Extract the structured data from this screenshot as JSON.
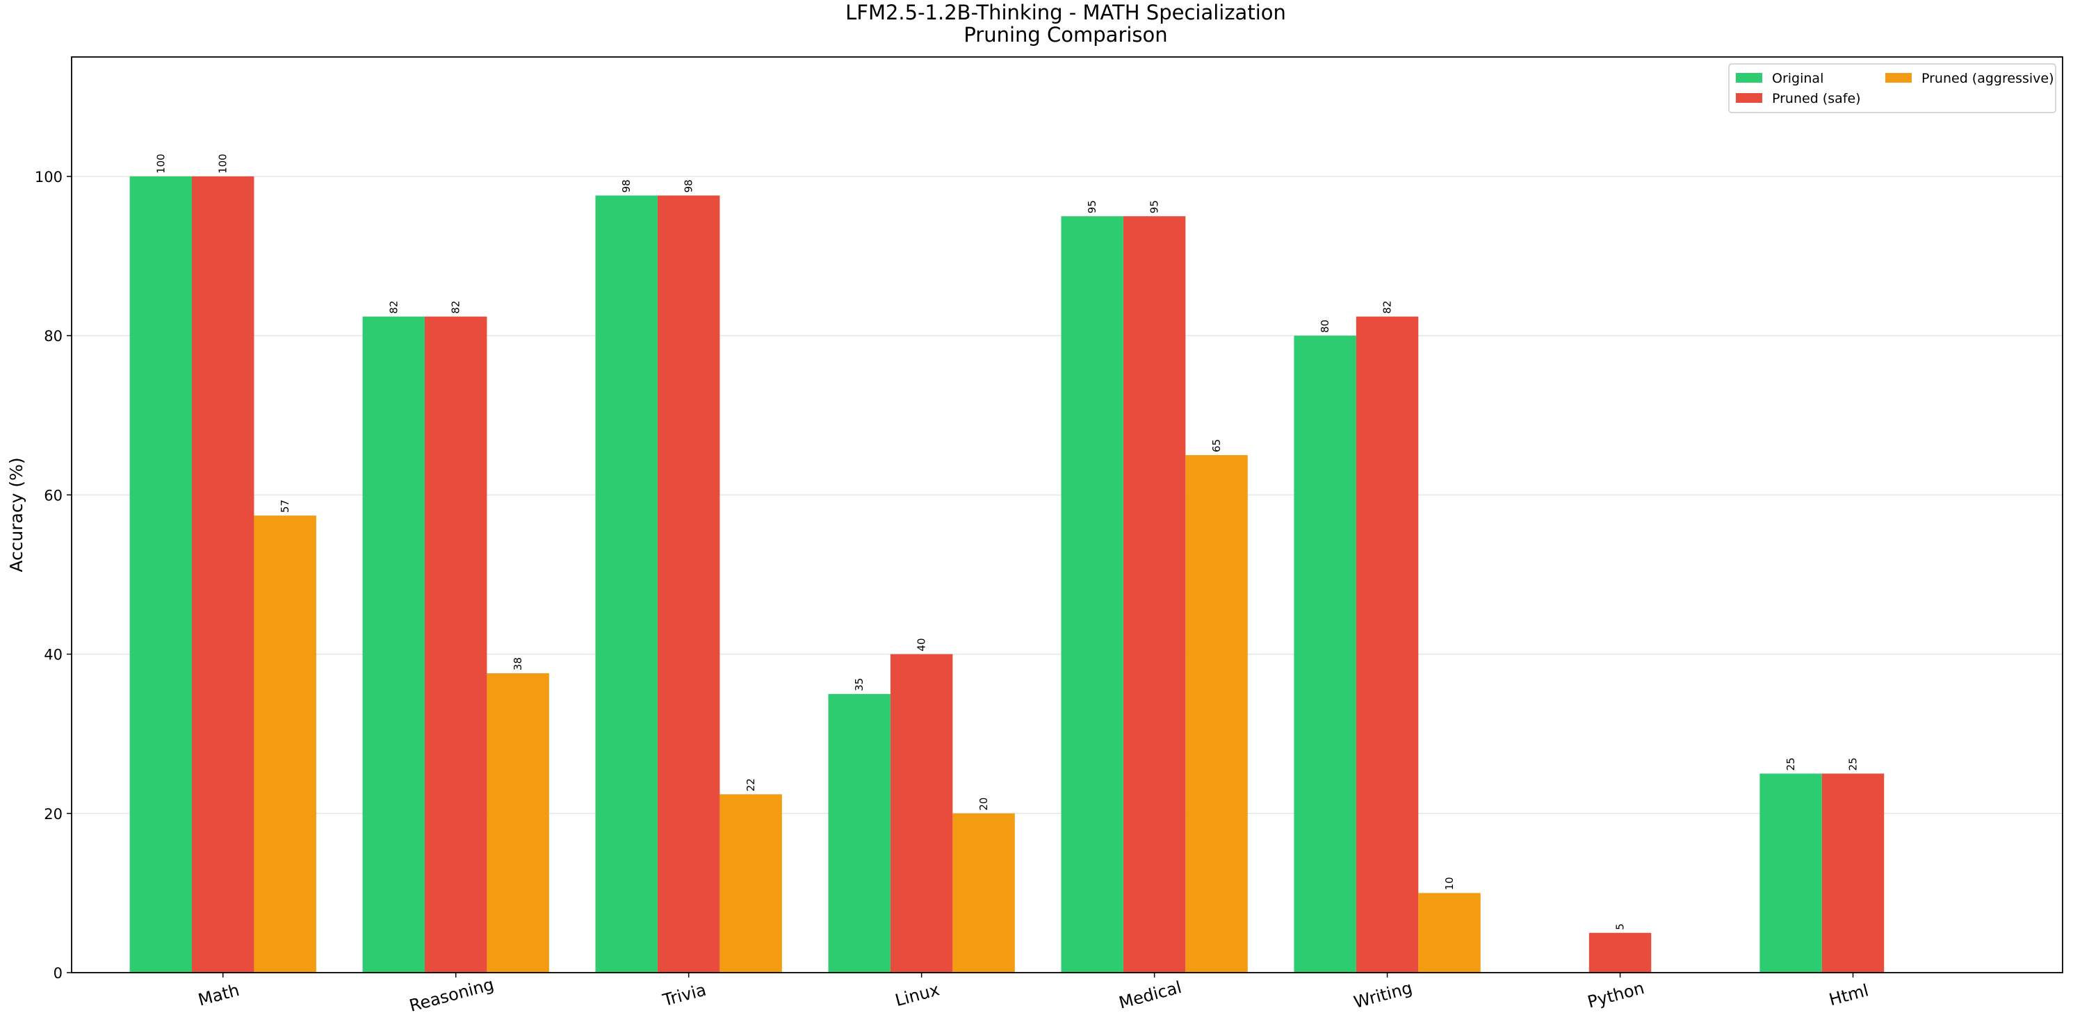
{
  "chart_data": {
    "type": "bar",
    "title": "LFM2.5-1.2B-Thinking - MATH Specialization",
    "subtitle": "Pruning Comparison",
    "y_label": "Accuracy (%)",
    "categories": [
      "Math",
      "Reasoning",
      "Trivia",
      "Linux",
      "Medical",
      "Writing",
      "Python",
      "Html"
    ],
    "series": [
      {
        "name": "Original",
        "color": "#2ecc71",
        "values": [
          100,
          82.4,
          97.6,
          35,
          95,
          80,
          null,
          25
        ],
        "value_labels": [
          "100",
          "82",
          "98",
          "35",
          "95",
          "80",
          null,
          "25"
        ]
      },
      {
        "name": "Pruned (safe)",
        "color": "#e74c3c",
        "values": [
          100,
          82.4,
          97.6,
          40,
          95,
          82.4,
          5,
          25
        ],
        "value_labels": [
          "100",
          "82",
          "98",
          "40",
          "95",
          "82",
          "5",
          "25"
        ]
      },
      {
        "name": "Pruned (aggressive)",
        "color": "#f39c12",
        "values": [
          57.4,
          37.6,
          22.4,
          20,
          65,
          10,
          null,
          null
        ],
        "value_labels": [
          "57",
          "38",
          "22",
          "20",
          "65",
          "10",
          null,
          null
        ]
      }
    ],
    "ylim": [
      0,
      115
    ],
    "yticks": [
      0,
      20,
      40,
      60,
      80,
      100
    ],
    "grid": true,
    "legend": "upper right"
  }
}
